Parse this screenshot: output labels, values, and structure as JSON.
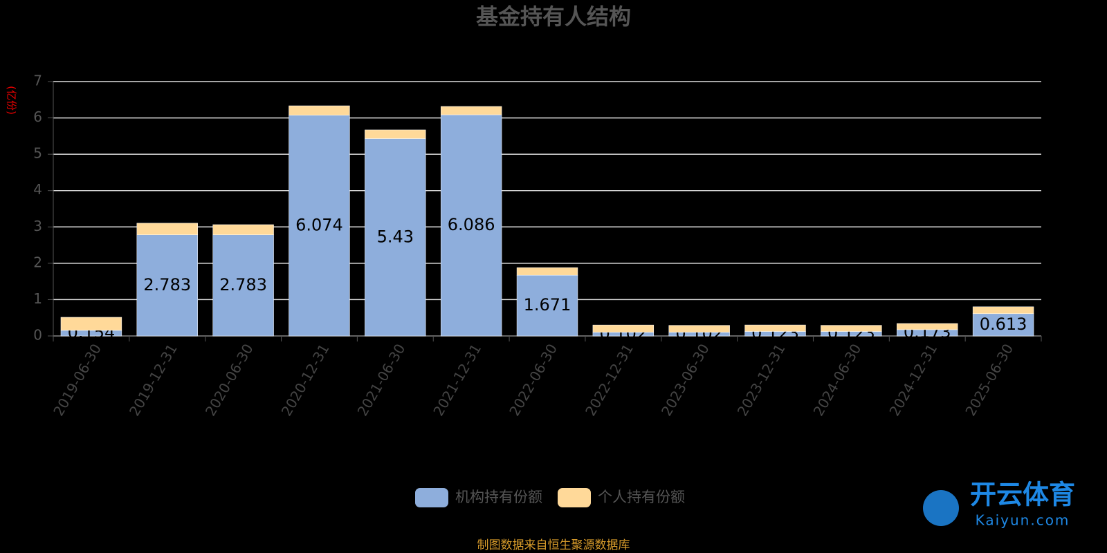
{
  "chart_data": {
    "type": "bar",
    "stacked": true,
    "title": "基金持有人结构",
    "y_label": "(亿份)",
    "categories": [
      "2019-06-30",
      "2019-12-31",
      "2020-06-30",
      "2020-12-31",
      "2021-06-30",
      "2021-12-31",
      "2022-06-30",
      "2022-12-31",
      "2023-06-30",
      "2023-12-31",
      "2024-06-30",
      "2024-12-31",
      "2025-06-30"
    ],
    "series": [
      {
        "name": "机构持有份额",
        "color": "#8eaedc",
        "values": [
          0.154,
          2.783,
          2.783,
          6.074,
          5.43,
          6.086,
          1.671,
          0.102,
          0.102,
          0.123,
          0.123,
          0.173,
          0.613
        ],
        "show_labels": true
      },
      {
        "name": "个人持有份额",
        "color": "#ffd999",
        "values": [
          0.36,
          0.32,
          0.28,
          0.26,
          0.24,
          0.23,
          0.21,
          0.2,
          0.19,
          0.18,
          0.17,
          0.17,
          0.19
        ],
        "show_labels": false
      }
    ],
    "ylim": [
      0,
      7
    ],
    "yticks": [
      0,
      1,
      2,
      3,
      4,
      5,
      6,
      7
    ],
    "grid": true,
    "source": "制图数据来自恒生聚源数据库",
    "watermark": {
      "name": "开云体育",
      "site": "Kaiyun.com"
    }
  }
}
